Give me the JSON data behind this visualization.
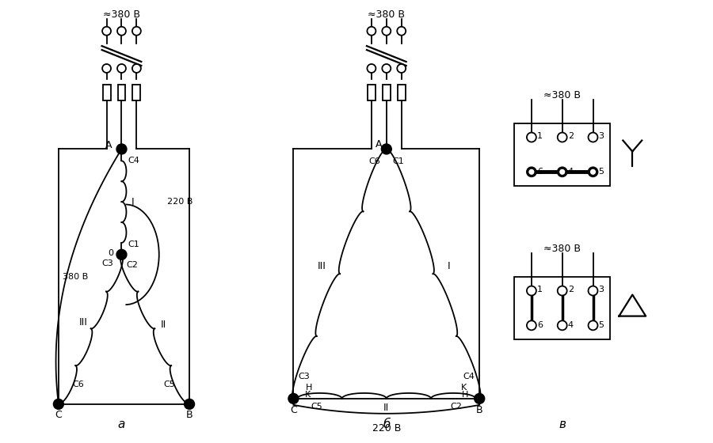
{
  "bg_color": "#ffffff",
  "line_color": "#000000",
  "label_a": "а",
  "label_b": "б",
  "label_v": "в",
  "voltage_380": "≈380 В",
  "voltage_220": "220 В",
  "voltage_380b": "380 В",
  "node_A": "A",
  "node_B": "B",
  "node_C": "C",
  "roman_I": "I",
  "roman_II": "II",
  "roman_III": "III"
}
